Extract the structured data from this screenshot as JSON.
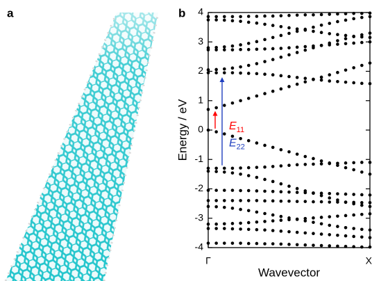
{
  "panel_labels": [
    "a",
    "b"
  ],
  "chart_data": {
    "type": "scatter",
    "ylabel": "Energy / eV",
    "xlabel": "Wavevector",
    "xlim": [
      0,
      1
    ],
    "xticks": [
      {
        "value": 0,
        "label": "Γ"
      },
      {
        "value": 1,
        "label": "X"
      }
    ],
    "ylim": [
      -4,
      4
    ],
    "yticks": [
      -4,
      -3,
      -2,
      -1,
      0,
      1,
      2,
      3,
      4
    ],
    "grid": false,
    "x": [
      0,
      0.05,
      0.1,
      0.15,
      0.2,
      0.25,
      0.3,
      0.35,
      0.4,
      0.45,
      0.5,
      0.55,
      0.6,
      0.65,
      0.7,
      0.75,
      0.8,
      0.85,
      0.9,
      0.95,
      1
    ],
    "series": [
      {
        "color": "#000000",
        "values": [
          0.7,
          0.76,
          0.84,
          0.92,
          1.0,
          1.08,
          1.16,
          1.24,
          1.32,
          1.4,
          1.48,
          1.56,
          1.64,
          1.72,
          1.8,
          1.88,
          1.96,
          2.04,
          2.12,
          2.2,
          2.28
        ]
      },
      {
        "color": "#000000",
        "values": [
          1.95,
          1.95,
          1.95,
          1.95,
          1.94,
          1.93,
          1.92,
          1.9,
          1.88,
          1.85,
          1.82,
          1.79,
          1.76,
          1.73,
          1.7,
          1.67,
          1.65,
          1.63,
          1.61,
          1.59,
          1.58
        ]
      },
      {
        "color": "#000000",
        "values": [
          2.05,
          2.06,
          2.08,
          2.11,
          2.15,
          2.2,
          2.26,
          2.33,
          2.4,
          2.48,
          2.56,
          2.64,
          2.72,
          2.8,
          2.88,
          2.96,
          3.04,
          3.11,
          3.18,
          3.24,
          3.3
        ]
      },
      {
        "color": "#000000",
        "values": [
          2.73,
          2.73,
          2.73,
          2.73,
          2.74,
          2.74,
          2.75,
          2.76,
          2.77,
          2.78,
          2.8,
          2.82,
          2.84,
          2.86,
          2.88,
          2.9,
          2.92,
          2.94,
          2.96,
          2.98,
          3.0
        ]
      },
      {
        "color": "#000000",
        "values": [
          2.8,
          2.81,
          2.83,
          2.86,
          2.9,
          2.95,
          3.01,
          3.08,
          3.15,
          3.22,
          3.29,
          3.36,
          3.43,
          3.5,
          3.57,
          3.63,
          3.69,
          3.74,
          3.79,
          3.83,
          3.86
        ]
      },
      {
        "color": "#000000",
        "values": [
          3.75,
          3.75,
          3.74,
          3.72,
          3.7,
          3.67,
          3.64,
          3.6,
          3.56,
          3.52,
          3.48,
          3.44,
          3.4,
          3.36,
          3.32,
          3.28,
          3.25,
          3.22,
          3.19,
          3.17,
          3.15
        ]
      },
      {
        "color": "#000000",
        "values": [
          3.86,
          3.86,
          3.86,
          3.86,
          3.86,
          3.87,
          3.87,
          3.88,
          3.88,
          3.89,
          3.9,
          3.91,
          3.92,
          3.92,
          3.93,
          3.94,
          3.95,
          3.96,
          3.97,
          3.97,
          3.98
        ]
      },
      {
        "color": "#000000",
        "values": [
          0.0,
          -0.06,
          -0.13,
          -0.21,
          -0.29,
          -0.36,
          -0.44,
          -0.52,
          -0.59,
          -0.67,
          -0.74,
          -0.82,
          -0.9,
          -0.97,
          -1.05,
          -1.12,
          -1.2,
          -1.28,
          -1.35,
          -1.43,
          -1.5
        ]
      },
      {
        "color": "#000000",
        "values": [
          -1.3,
          -1.3,
          -1.3,
          -1.3,
          -1.29,
          -1.28,
          -1.27,
          -1.26,
          -1.24,
          -1.22,
          -1.2,
          -1.18,
          -1.17,
          -1.16,
          -1.15,
          -1.14,
          -1.13,
          -1.12,
          -1.11,
          -1.1,
          -1.1
        ]
      },
      {
        "color": "#000000",
        "values": [
          -1.4,
          -1.41,
          -1.43,
          -1.46,
          -1.5,
          -1.55,
          -1.61,
          -1.68,
          -1.75,
          -1.83,
          -1.91,
          -1.99,
          -2.07,
          -2.15,
          -2.23,
          -2.31,
          -2.38,
          -2.45,
          -2.51,
          -2.56,
          -2.6
        ]
      },
      {
        "color": "#000000",
        "values": [
          -2.05,
          -2.05,
          -2.05,
          -2.05,
          -2.06,
          -2.06,
          -2.07,
          -2.08,
          -2.09,
          -2.1,
          -2.11,
          -2.12,
          -2.13,
          -2.14,
          -2.15,
          -2.16,
          -2.17,
          -2.18,
          -2.19,
          -2.2,
          -2.21
        ]
      },
      {
        "color": "#000000",
        "values": [
          -2.4,
          -2.4,
          -2.4,
          -2.4,
          -2.4,
          -2.4,
          -2.4,
          -2.41,
          -2.41,
          -2.42,
          -2.42,
          -2.43,
          -2.43,
          -2.44,
          -2.44,
          -2.45,
          -2.45,
          -2.46,
          -2.46,
          -2.47,
          -2.47
        ]
      },
      {
        "color": "#000000",
        "values": [
          -2.6,
          -2.61,
          -2.63,
          -2.66,
          -2.7,
          -2.74,
          -2.79,
          -2.84,
          -2.89,
          -2.94,
          -2.99,
          -3.04,
          -3.09,
          -3.14,
          -3.19,
          -3.24,
          -3.28,
          -3.32,
          -3.35,
          -3.38,
          -3.4
        ]
      },
      {
        "color": "#000000",
        "values": [
          -3.2,
          -3.2,
          -3.19,
          -3.18,
          -3.17,
          -3.15,
          -3.13,
          -3.11,
          -3.09,
          -3.07,
          -3.05,
          -3.03,
          -3.01,
          -2.99,
          -2.97,
          -2.95,
          -2.93,
          -2.91,
          -2.89,
          -2.87,
          -2.85
        ]
      },
      {
        "color": "#000000",
        "values": [
          -3.35,
          -3.35,
          -3.35,
          -3.36,
          -3.37,
          -3.38,
          -3.39,
          -3.4,
          -3.42,
          -3.44,
          -3.46,
          -3.48,
          -3.5,
          -3.52,
          -3.54,
          -3.56,
          -3.58,
          -3.6,
          -3.62,
          -3.64,
          -3.66
        ]
      },
      {
        "color": "#000000",
        "values": [
          -3.85,
          -3.85,
          -3.85,
          -3.85,
          -3.85,
          -3.86,
          -3.86,
          -3.87,
          -3.87,
          -3.88,
          -3.89,
          -3.9,
          -3.91,
          -3.92,
          -3.93,
          -3.94,
          -3.95,
          -3.96,
          -3.97,
          -3.98,
          -3.98
        ]
      }
    ],
    "annotations": [
      {
        "text": "E",
        "sub": "11",
        "color": "#ff0000",
        "from": 0.05,
        "to": 0.65
      },
      {
        "text": "E",
        "sub": "22",
        "color": "#1f3fbf",
        "from": -1.2,
        "to": 1.8
      }
    ]
  }
}
